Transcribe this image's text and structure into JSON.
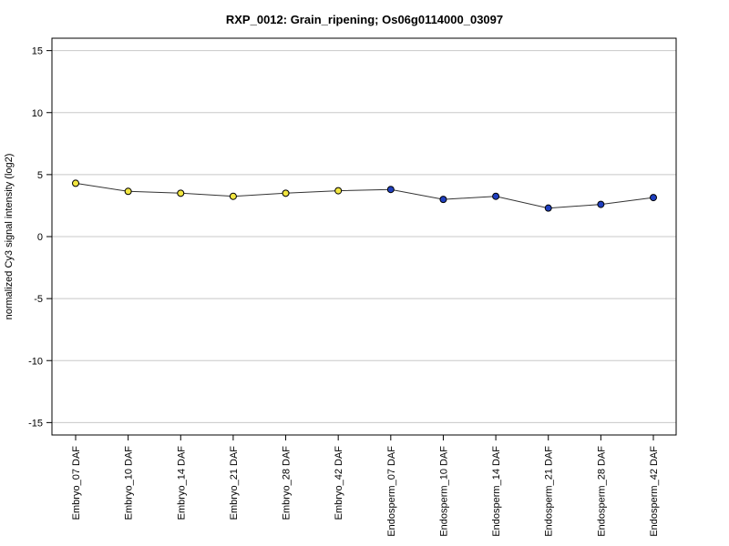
{
  "chart_data": {
    "type": "line",
    "title": "RXP_0012: Grain_ripening; Os06g0114000_03097",
    "xlabel": "",
    "ylabel": "normalized Cy3 signal intensity (log2)",
    "ylim": [
      -16,
      16
    ],
    "yticks": [
      -15,
      -10,
      -5,
      0,
      5,
      10,
      15
    ],
    "grid": true,
    "categories": [
      "Embryo_07 DAF",
      "Embryo_10 DAF",
      "Embryo_14 DAF",
      "Embryo_21 DAF",
      "Embryo_28 DAF",
      "Embryo_42 DAF",
      "Endosperm_07 DAF",
      "Endosperm_10 DAF",
      "Endosperm_14 DAF",
      "Endosperm_21 DAF",
      "Endosperm_28 DAF",
      "Endosperm_42 DAF"
    ],
    "series": [
      {
        "values": [
          4.3,
          3.65,
          3.5,
          3.25,
          3.5,
          3.7,
          3.8,
          3.0,
          3.25,
          2.3,
          2.6,
          3.15
        ],
        "point_colors": [
          "#f2e640",
          "#f2e640",
          "#f2e640",
          "#f2e640",
          "#f2e640",
          "#f2e640",
          "#1f3fbf",
          "#1f3fbf",
          "#1f3fbf",
          "#1f3fbf",
          "#1f3fbf",
          "#1f3fbf"
        ],
        "line_color": "#333333"
      }
    ]
  }
}
